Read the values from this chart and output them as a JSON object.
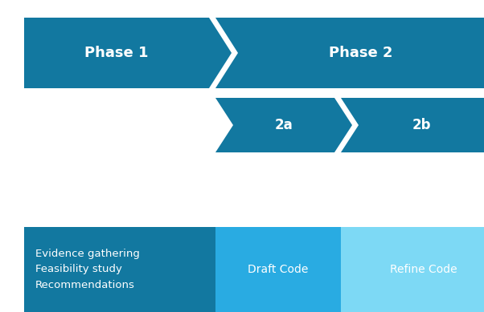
{
  "bg_color": "#ffffff",
  "arrow_color_dark": "#1278a0",
  "arrow_color_mid": "#29abe2",
  "arrow_color_light": "#7dd9f5",
  "phase1_label": "Phase 1",
  "phase2_label": "Phase 2",
  "sub2a_label": "2a",
  "sub2b_label": "2b",
  "box1_text": "Evidence gathering\nFeasibility study\nRecommendations",
  "box2_text": "Draft Code",
  "box3_text": "Refine Code",
  "text_color": "#ffffff",
  "figsize": [
    6.02,
    3.89
  ],
  "dpi": 100
}
